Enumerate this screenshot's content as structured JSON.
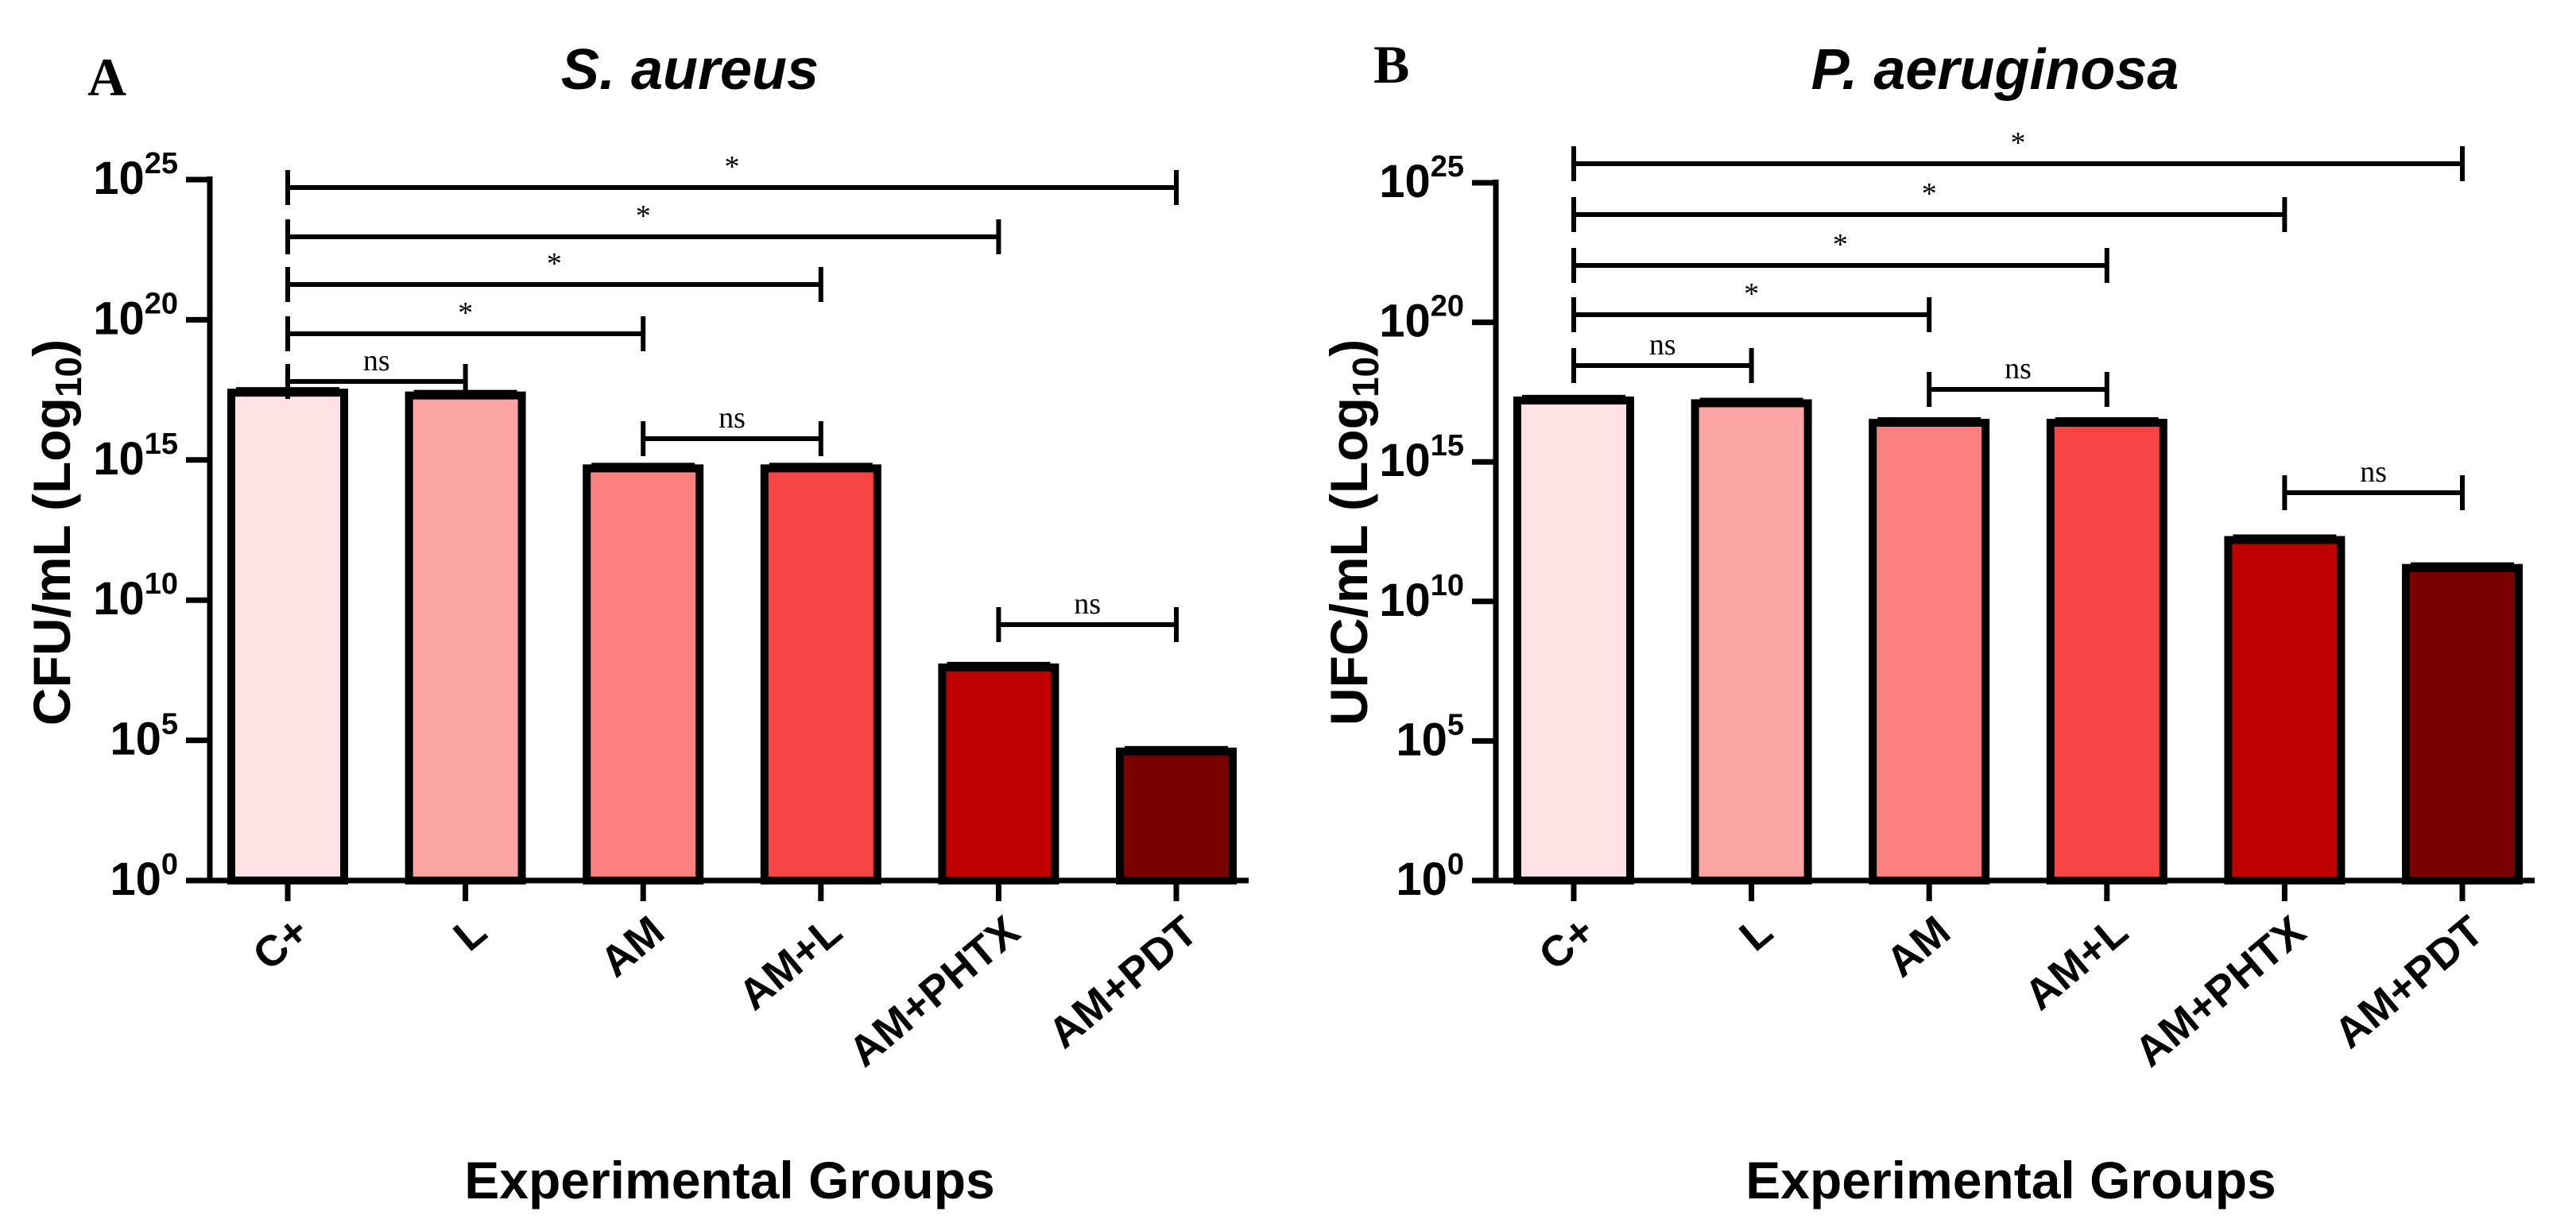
{
  "chart_data": [
    {
      "type": "bar",
      "panel": "A",
      "title": "S. aureus",
      "ylabel": "CFU/mL (Log10)",
      "xlabel": "Experimental Groups",
      "categories": [
        "C+",
        "L",
        "AM",
        "AM+L",
        "AM+PHTX",
        "AM+PDT"
      ],
      "values": [
        17.4,
        17.3,
        14.7,
        14.7,
        7.6,
        4.6
      ],
      "colors": [
        "#ffe0e4",
        "#fda4a4",
        "#fc8080",
        "#f84444",
        "#c00000",
        "#7a0000"
      ],
      "yscale": "log10",
      "ylim": [
        0,
        25
      ],
      "yticks": [
        0,
        5,
        10,
        15,
        20,
        25
      ],
      "ytick_base": "10",
      "comparisons": [
        {
          "from": 0,
          "to": 5,
          "label": "*"
        },
        {
          "from": 0,
          "to": 4,
          "label": "*"
        },
        {
          "from": 0,
          "to": 3,
          "label": "*"
        },
        {
          "from": 0,
          "to": 2,
          "label": "*"
        },
        {
          "from": 0,
          "to": 1,
          "label": "ns"
        },
        {
          "from": 2,
          "to": 3,
          "label": "ns"
        },
        {
          "from": 4,
          "to": 5,
          "label": "ns"
        }
      ]
    },
    {
      "type": "bar",
      "panel": "B",
      "title": "P. aeruginosa",
      "ylabel": "UFC/mL (Log10)",
      "xlabel": "Experimental Groups",
      "categories": [
        "C+",
        "L",
        "AM",
        "AM+L",
        "AM+PHTX",
        "AM+PDT"
      ],
      "values": [
        17.2,
        17.1,
        16.4,
        16.4,
        12.2,
        11.2
      ],
      "colors": [
        "#ffe0e4",
        "#fda4a4",
        "#fc8080",
        "#f84444",
        "#c00000",
        "#7a0000"
      ],
      "yscale": "log10",
      "ylim": [
        0,
        25
      ],
      "yticks": [
        0,
        5,
        10,
        15,
        20,
        25
      ],
      "ytick_base": "10",
      "comparisons": [
        {
          "from": 0,
          "to": 5,
          "label": "*"
        },
        {
          "from": 0,
          "to": 4,
          "label": "*"
        },
        {
          "from": 0,
          "to": 3,
          "label": "*"
        },
        {
          "from": 0,
          "to": 2,
          "label": "*"
        },
        {
          "from": 0,
          "to": 1,
          "label": "ns"
        },
        {
          "from": 2,
          "to": 3,
          "label": "ns"
        },
        {
          "from": 4,
          "to": 5,
          "label": "ns"
        }
      ]
    }
  ]
}
